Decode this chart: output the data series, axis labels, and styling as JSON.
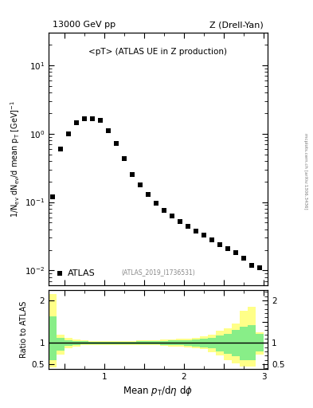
{
  "title_left": "13000 GeV pp",
  "title_right": "Z (Drell-Yan)",
  "main_label": "<pT> (ATLAS UE in Z production)",
  "atlas_label": "ATLAS_2019_I1736531",
  "legend_label": "ATLAS",
  "right_label": "mcplots.cern.ch [arXiv:1306.3436]",
  "ylabel_main": "1/N$_{ev}$ dN$_{ev}$/d mean p$_T$ [GeV]$^{-1}$",
  "ylabel_ratio": "Ratio to ATLAS",
  "xlim": [
    0.3,
    3.05
  ],
  "ylim_main": [
    0.006,
    30.0
  ],
  "ylim_ratio": [
    0.38,
    2.25
  ],
  "data_x": [
    0.35,
    0.45,
    0.55,
    0.65,
    0.75,
    0.85,
    0.95,
    1.05,
    1.15,
    1.25,
    1.35,
    1.45,
    1.55,
    1.65,
    1.75,
    1.85,
    1.95,
    2.05,
    2.15,
    2.25,
    2.35,
    2.45,
    2.55,
    2.65,
    2.75,
    2.85,
    2.95
  ],
  "data_y": [
    0.12,
    0.6,
    1.0,
    1.45,
    1.65,
    1.65,
    1.55,
    1.1,
    0.72,
    0.43,
    0.25,
    0.18,
    0.13,
    0.095,
    0.075,
    0.062,
    0.052,
    0.044,
    0.038,
    0.033,
    0.028,
    0.024,
    0.021,
    0.018,
    0.015,
    0.012,
    0.011
  ],
  "ratio_yellow_upper": [
    2.15,
    1.2,
    1.12,
    1.08,
    1.06,
    1.05,
    1.05,
    1.05,
    1.05,
    1.05,
    1.05,
    1.06,
    1.07,
    1.07,
    1.08,
    1.08,
    1.09,
    1.1,
    1.12,
    1.15,
    1.2,
    1.28,
    1.35,
    1.45,
    1.75,
    1.85,
    1.25
  ],
  "ratio_yellow_lower": [
    0.42,
    0.72,
    0.88,
    0.92,
    0.94,
    0.95,
    0.95,
    0.95,
    0.95,
    0.95,
    0.95,
    0.95,
    0.94,
    0.94,
    0.93,
    0.92,
    0.91,
    0.9,
    0.88,
    0.85,
    0.78,
    0.7,
    0.6,
    0.52,
    0.45,
    0.44,
    0.72
  ],
  "ratio_green_upper": [
    1.62,
    1.12,
    1.07,
    1.05,
    1.04,
    1.03,
    1.03,
    1.03,
    1.03,
    1.03,
    1.03,
    1.04,
    1.04,
    1.05,
    1.05,
    1.06,
    1.06,
    1.07,
    1.08,
    1.1,
    1.12,
    1.18,
    1.22,
    1.3,
    1.38,
    1.42,
    1.22
  ],
  "ratio_green_lower": [
    0.6,
    0.82,
    0.93,
    0.95,
    0.96,
    0.97,
    0.97,
    0.97,
    0.97,
    0.97,
    0.97,
    0.97,
    0.96,
    0.96,
    0.95,
    0.95,
    0.94,
    0.93,
    0.92,
    0.9,
    0.87,
    0.8,
    0.75,
    0.68,
    0.6,
    0.6,
    0.8
  ],
  "marker_color": "black",
  "marker_size": 4.5,
  "yellow_color": "#ffff88",
  "green_color": "#88ee88",
  "bg_color": "white",
  "bin_width": 0.1
}
